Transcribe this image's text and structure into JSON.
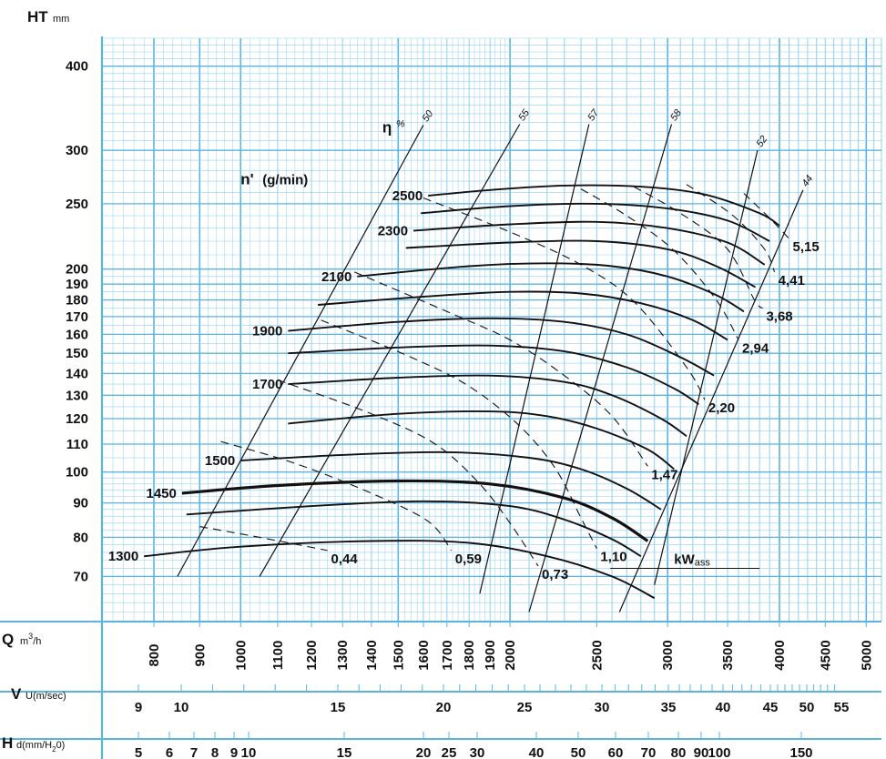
{
  "colors": {
    "grid": "#56b4e8",
    "grid_minor": "#8fd0f2",
    "ink": "#111111",
    "paper": "#ffffff"
  },
  "chart_data": {
    "type": "line",
    "title": "",
    "yaxis": {
      "symbol": "HT",
      "unit": "mm",
      "scale": "log",
      "range": [
        60,
        440
      ],
      "ticks": [
        400,
        300,
        250,
        200,
        190,
        180,
        170,
        160,
        150,
        140,
        130,
        120,
        110,
        100,
        90,
        80,
        70
      ]
    },
    "xaxes": [
      {
        "symbol": "Q",
        "unit": "m",
        "unit_sup": "3",
        "unit_tail": "/h",
        "scale": "log",
        "range": [
          700,
          5200
        ],
        "ticks": [
          800,
          900,
          1000,
          1100,
          1200,
          1300,
          1400,
          1500,
          1600,
          1700,
          1800,
          1900,
          2000,
          2500,
          3000,
          3500,
          4000,
          4500,
          5000
        ]
      },
      {
        "symbol": "V",
        "unit": "U(m/sec)",
        "ticks": [
          9,
          10,
          15,
          20,
          25,
          30,
          35,
          40,
          45,
          50,
          55
        ]
      },
      {
        "symbol": "H",
        "unit": "d(mm/H",
        "unit_sub": "2",
        "unit_tail": "0)",
        "ticks": [
          "5",
          "6",
          "7",
          "8",
          "9",
          "10",
          "15",
          "20",
          "25",
          "30",
          "40",
          "50",
          "60",
          "70",
          "80",
          "90",
          "100",
          "150"
        ]
      }
    ],
    "speed_legend": {
      "symbol": "n'",
      "unit": "(g/min)"
    },
    "speed_curves": [
      {
        "n": 2500,
        "label": "2500",
        "points": [
          [
            1620,
            257
          ],
          [
            1900,
            262
          ],
          [
            2300,
            266
          ],
          [
            2800,
            265
          ],
          [
            3300,
            258
          ],
          [
            3800,
            242
          ],
          [
            4000,
            232
          ]
        ]
      },
      {
        "n": 2400,
        "label": "",
        "points": [
          [
            1590,
            242
          ],
          [
            2000,
            248
          ],
          [
            2500,
            250
          ],
          [
            3000,
            246
          ],
          [
            3500,
            236
          ],
          [
            3900,
            220
          ]
        ]
      },
      {
        "n": 2300,
        "label": "2300",
        "points": [
          [
            1560,
            228
          ],
          [
            2000,
            233
          ],
          [
            2500,
            235
          ],
          [
            3000,
            230
          ],
          [
            3500,
            219
          ],
          [
            3850,
            203
          ]
        ]
      },
      {
        "n": 2200,
        "label": "",
        "points": [
          [
            1530,
            215
          ],
          [
            2000,
            219
          ],
          [
            2500,
            220
          ],
          [
            3000,
            214
          ],
          [
            3400,
            202
          ],
          [
            3760,
            188
          ]
        ]
      },
      {
        "n": 2100,
        "label": "2100",
        "points": [
          [
            1350,
            195
          ],
          [
            1800,
            202
          ],
          [
            2200,
            204
          ],
          [
            2600,
            202
          ],
          [
            3000,
            195
          ],
          [
            3400,
            183
          ],
          [
            3650,
            173
          ]
        ]
      },
      {
        "n": 2000,
        "label": "",
        "points": [
          [
            1220,
            177
          ],
          [
            1600,
            182
          ],
          [
            2000,
            185
          ],
          [
            2400,
            184
          ],
          [
            2800,
            178
          ],
          [
            3200,
            168
          ],
          [
            3500,
            157
          ]
        ]
      },
      {
        "n": 1900,
        "label": "1900",
        "points": [
          [
            1130,
            162
          ],
          [
            1500,
            167
          ],
          [
            1900,
            169
          ],
          [
            2300,
            167
          ],
          [
            2700,
            160
          ],
          [
            3100,
            148
          ],
          [
            3380,
            139
          ]
        ]
      },
      {
        "n": 1800,
        "label": "",
        "points": [
          [
            1130,
            150
          ],
          [
            1500,
            153
          ],
          [
            1900,
            154
          ],
          [
            2300,
            151
          ],
          [
            2700,
            143
          ],
          [
            3050,
            133
          ],
          [
            3250,
            126
          ]
        ]
      },
      {
        "n": 1700,
        "label": "1700",
        "points": [
          [
            1130,
            135
          ],
          [
            1500,
            138
          ],
          [
            1900,
            139
          ],
          [
            2300,
            136
          ],
          [
            2600,
            130
          ],
          [
            2950,
            120
          ],
          [
            3150,
            113
          ]
        ]
      },
      {
        "n": 1600,
        "label": "",
        "points": [
          [
            1130,
            118
          ],
          [
            1500,
            122
          ],
          [
            1900,
            123
          ],
          [
            2200,
            121
          ],
          [
            2500,
            116
          ],
          [
            2850,
            108
          ],
          [
            3050,
            101
          ]
        ]
      },
      {
        "n": 1500,
        "label": "1500",
        "points": [
          [
            1000,
            104
          ],
          [
            1300,
            106
          ],
          [
            1700,
            107
          ],
          [
            2100,
            105
          ],
          [
            2400,
            101
          ],
          [
            2700,
            94.5
          ],
          [
            2950,
            88
          ]
        ]
      },
      {
        "n": 1450,
        "label": "1450",
        "points": [
          [
            860,
            93
          ],
          [
            1100,
            95.5
          ],
          [
            1500,
            97
          ],
          [
            1900,
            96
          ],
          [
            2300,
            91.5
          ],
          [
            2600,
            85.5
          ],
          [
            2850,
            79
          ]
        ]
      },
      {
        "n": 1400,
        "label": "",
        "points": [
          [
            870,
            86.5
          ],
          [
            1200,
            89
          ],
          [
            1600,
            90.5
          ],
          [
            2000,
            89
          ],
          [
            2300,
            85
          ],
          [
            2600,
            79.5
          ],
          [
            2800,
            75
          ]
        ]
      },
      {
        "n": 1300,
        "label": "1300",
        "points": [
          [
            780,
            75
          ],
          [
            1000,
            77.5
          ],
          [
            1400,
            79
          ],
          [
            1800,
            78.5
          ],
          [
            2200,
            75
          ],
          [
            2600,
            70
          ],
          [
            2900,
            65
          ]
        ]
      }
    ],
    "efficiency_lines": [
      {
        "eta": 50,
        "label": "50",
        "points": [
          [
            850,
            70
          ],
          [
            1600,
            327
          ]
        ]
      },
      {
        "eta": 55,
        "label": "55",
        "points": [
          [
            1050,
            70
          ],
          [
            2050,
            328
          ]
        ]
      },
      {
        "eta": 57,
        "label": "57",
        "points": [
          [
            1850,
            66
          ],
          [
            2450,
            328
          ]
        ]
      },
      {
        "eta": 58,
        "label": "58",
        "points": [
          [
            2100,
            62
          ],
          [
            3030,
            328
          ]
        ]
      },
      {
        "eta": 52,
        "label": "52",
        "points": [
          [
            2900,
            68
          ],
          [
            3780,
            300
          ]
        ]
      },
      {
        "eta": 44,
        "label": "44",
        "points": [
          [
            2650,
            62
          ],
          [
            4250,
            262
          ]
        ]
      }
    ],
    "efficiency_symbol": "η",
    "efficiency_unit": "%",
    "power_curves": [
      {
        "kw": 0.44,
        "label": "0,44",
        "points": [
          [
            900,
            83
          ],
          [
            1050,
            80
          ],
          [
            1250,
            76.5
          ]
        ]
      },
      {
        "kw": 0.59,
        "label": "0,59",
        "points": [
          [
            950,
            111
          ],
          [
            1150,
            103
          ],
          [
            1400,
            93
          ],
          [
            1620,
            84.5
          ],
          [
            1720,
            76.5
          ]
        ]
      },
      {
        "kw": 0.73,
        "label": "0,73",
        "points": [
          [
            1100,
            137
          ],
          [
            1400,
            122
          ],
          [
            1650,
            110
          ],
          [
            1850,
            96
          ],
          [
            2000,
            84
          ],
          [
            2150,
            72.5
          ]
        ]
      },
      {
        "kw": 1.1,
        "label": "1,10",
        "points": [
          [
            1230,
            168
          ],
          [
            1550,
            148
          ],
          [
            1800,
            134
          ],
          [
            2050,
            117
          ],
          [
            2250,
            101
          ],
          [
            2400,
            85.5
          ],
          [
            2500,
            77
          ]
        ]
      },
      {
        "kw": 1.47,
        "label": "1,47",
        "points": [
          [
            1340,
            198
          ],
          [
            1700,
            173
          ],
          [
            2000,
            157
          ],
          [
            2300,
            139
          ],
          [
            2600,
            121
          ],
          [
            2850,
            102
          ]
        ]
      },
      {
        "kw": 2.2,
        "label": "2,20",
        "points": [
          [
            1600,
            255
          ],
          [
            2000,
            227
          ],
          [
            2400,
            203
          ],
          [
            2750,
            179
          ],
          [
            3150,
            143
          ],
          [
            3300,
            128
          ]
        ]
      },
      {
        "kw": 2.94,
        "label": "2,94",
        "points": [
          [
            2400,
            263
          ],
          [
            2700,
            240
          ],
          [
            3050,
            213
          ],
          [
            3400,
            180
          ],
          [
            3600,
            157
          ]
        ]
      },
      {
        "kw": 3.68,
        "label": "3,68",
        "points": [
          [
            2750,
            265
          ],
          [
            3100,
            242
          ],
          [
            3500,
            214
          ],
          [
            3750,
            180
          ],
          [
            3830,
            175
          ]
        ]
      },
      {
        "kw": 4.41,
        "label": "4,41",
        "points": [
          [
            3150,
            267
          ],
          [
            3550,
            240
          ],
          [
            3850,
            214
          ],
          [
            3950,
            198
          ]
        ]
      },
      {
        "kw": 5.15,
        "label": "5,15",
        "points": [
          [
            3650,
            259
          ],
          [
            3900,
            238
          ],
          [
            4100,
            222
          ]
        ]
      }
    ],
    "power_legend": {
      "label": "kW",
      "sub": "ass"
    },
    "grid": true
  }
}
